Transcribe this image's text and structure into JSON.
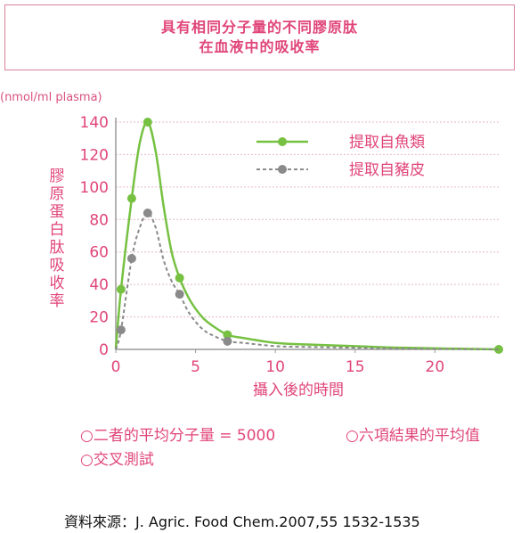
{
  "title": [
    "具有相同分子量的不同膠原肽",
    "在血液中的吸收率"
  ],
  "unit": "(nmol/ml plasma)",
  "notes": [
    "○二者的平均分子量 = 5000",
    "○交叉測試"
  ],
  "note_right": "○六項結果的平均值",
  "source": "資料來源：J. Agric. Food Chem.2007,55 1532-1535",
  "colors": {
    "fish": "#76c142",
    "pig": "#8a8a8a",
    "text": "#e0457a",
    "grid": "#e4b6c6",
    "axis": "#9a9a9a"
  },
  "chart_data": {
    "type": "line",
    "xlabel": "攝入後的時間",
    "ylabel": "膠原蛋白肽吸收率",
    "xlim": [
      0,
      24
    ],
    "ylim": [
      0,
      140
    ],
    "xticks": [
      0,
      5,
      10,
      15,
      20
    ],
    "yticks": [
      0,
      20,
      40,
      60,
      80,
      100,
      120,
      140
    ],
    "grid": true,
    "legend_position": "top-right",
    "series": [
      {
        "name": "提取自魚類",
        "style": "solid",
        "points": [
          [
            0.33,
            37
          ],
          [
            1,
            93
          ],
          [
            2,
            140
          ],
          [
            4,
            44
          ],
          [
            7,
            9
          ],
          [
            24,
            0
          ]
        ],
        "curve": [
          [
            0,
            0
          ],
          [
            0.33,
            37
          ],
          [
            1,
            93
          ],
          [
            1.5,
            127
          ],
          [
            2,
            140
          ],
          [
            2.5,
            122
          ],
          [
            3,
            88
          ],
          [
            3.5,
            60
          ],
          [
            4,
            44
          ],
          [
            4.5,
            33
          ],
          [
            5,
            25
          ],
          [
            5.5,
            19
          ],
          [
            6,
            15
          ],
          [
            7,
            9
          ],
          [
            8,
            7
          ],
          [
            10,
            4
          ],
          [
            12,
            3
          ],
          [
            15,
            2
          ],
          [
            18,
            1
          ],
          [
            24,
            0
          ]
        ]
      },
      {
        "name": "提取自豬皮",
        "style": "dashed",
        "points": [
          [
            0.33,
            12
          ],
          [
            1,
            56
          ],
          [
            2,
            84
          ],
          [
            4,
            34
          ],
          [
            7,
            5
          ]
        ],
        "curve": [
          [
            0,
            0
          ],
          [
            0.33,
            12
          ],
          [
            1,
            56
          ],
          [
            1.5,
            75
          ],
          [
            2,
            84
          ],
          [
            2.5,
            75
          ],
          [
            3,
            55
          ],
          [
            3.5,
            42
          ],
          [
            4,
            34
          ],
          [
            4.5,
            24
          ],
          [
            5,
            17
          ],
          [
            5.5,
            12
          ],
          [
            6,
            9
          ],
          [
            7,
            5
          ],
          [
            8,
            4
          ],
          [
            10,
            2
          ],
          [
            12,
            1.5
          ],
          [
            15,
            1
          ],
          [
            18,
            0.5
          ],
          [
            24,
            0
          ]
        ]
      }
    ]
  }
}
